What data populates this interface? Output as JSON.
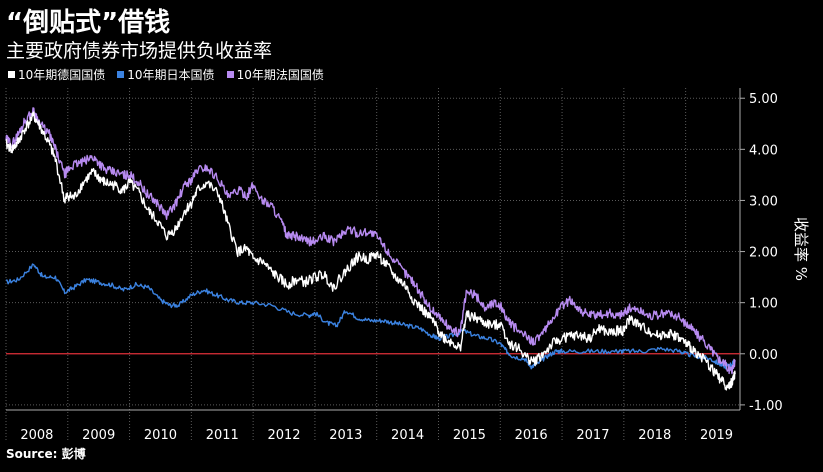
{
  "header": {
    "title": "“倒贴式”借钱",
    "subtitle": "主要政府债券市场提供负收益率"
  },
  "source": "Source: 彭博",
  "colors": {
    "background": "#000000",
    "grid": "#555555",
    "zero_line": "#e0303a",
    "germany": "#ffffff",
    "japan": "#3b82e0",
    "france": "#b78af0"
  },
  "chart_data": {
    "type": "line",
    "title": "“倒贴式”借钱",
    "subtitle": "主要政府债券市场提供负收益率",
    "ylabel": "收益率 %",
    "ylim": [
      -1.1,
      5.2
    ],
    "yticks": [
      5.0,
      4.0,
      3.0,
      2.0,
      1.0,
      0.0,
      -1.0
    ],
    "ytick_labels": [
      "5.00",
      "4.00",
      "3.00",
      "2.00",
      "1.00",
      "0.00",
      "-1.00"
    ],
    "xlim": [
      2008.0,
      2019.88
    ],
    "xtick_labels": [
      "2008",
      "2009",
      "2010",
      "2011",
      "2012",
      "2013",
      "2014",
      "2015",
      "2016",
      "2017",
      "2018",
      "2019"
    ],
    "reference_line": 0,
    "grid": true,
    "legend_position": "top-left",
    "series": [
      {
        "name": "10年期德国国债",
        "color": "#ffffff",
        "x": [
          2008.0,
          2008.1,
          2008.2,
          2008.3,
          2008.45,
          2008.55,
          2008.7,
          2008.8,
          2008.95,
          2009.0,
          2009.1,
          2009.25,
          2009.4,
          2009.5,
          2009.6,
          2009.75,
          2009.9,
          2010.0,
          2010.15,
          2010.3,
          2010.45,
          2010.6,
          2010.75,
          2010.9,
          2011.0,
          2011.1,
          2011.25,
          2011.45,
          2011.6,
          2011.75,
          2011.9,
          2012.0,
          2012.15,
          2012.3,
          2012.45,
          2012.55,
          2012.7,
          2012.85,
          2013.0,
          2013.15,
          2013.3,
          2013.45,
          2013.55,
          2013.7,
          2013.85,
          2014.0,
          2014.15,
          2014.3,
          2014.45,
          2014.6,
          2014.75,
          2014.9,
          2015.0,
          2015.1,
          2015.25,
          2015.35,
          2015.45,
          2015.6,
          2015.75,
          2015.9,
          2016.0,
          2016.15,
          2016.3,
          2016.45,
          2016.55,
          2016.7,
          2016.85,
          2017.0,
          2017.15,
          2017.3,
          2017.45,
          2017.6,
          2017.75,
          2017.9,
          2018.0,
          2018.1,
          2018.25,
          2018.4,
          2018.55,
          2018.7,
          2018.85,
          2019.0,
          2019.1,
          2019.25,
          2019.4,
          2019.5,
          2019.6,
          2019.7,
          2019.75,
          2019.8
        ],
        "y": [
          4.1,
          4.0,
          4.15,
          4.4,
          4.65,
          4.45,
          4.1,
          3.8,
          3.0,
          3.1,
          3.05,
          3.35,
          3.55,
          3.45,
          3.35,
          3.3,
          3.2,
          3.35,
          3.15,
          2.8,
          2.6,
          2.3,
          2.45,
          2.8,
          2.95,
          3.2,
          3.35,
          3.1,
          2.5,
          2.0,
          2.05,
          1.85,
          1.8,
          1.6,
          1.45,
          1.35,
          1.45,
          1.4,
          1.5,
          1.55,
          1.3,
          1.55,
          1.7,
          1.9,
          1.85,
          1.95,
          1.75,
          1.5,
          1.35,
          1.05,
          0.85,
          0.65,
          0.45,
          0.3,
          0.2,
          0.1,
          0.75,
          0.7,
          0.6,
          0.55,
          0.6,
          0.2,
          0.1,
          -0.1,
          -0.15,
          0.0,
          0.2,
          0.3,
          0.35,
          0.35,
          0.3,
          0.5,
          0.4,
          0.45,
          0.45,
          0.7,
          0.55,
          0.45,
          0.35,
          0.4,
          0.35,
          0.2,
          0.1,
          -0.05,
          -0.25,
          -0.4,
          -0.55,
          -0.65,
          -0.55,
          -0.4
        ]
      },
      {
        "name": "10年期日本国债",
        "color": "#3b82e0",
        "x": [
          2008.0,
          2008.2,
          2008.45,
          2008.6,
          2008.8,
          2008.95,
          2009.1,
          2009.3,
          2009.5,
          2009.7,
          2009.9,
          2010.1,
          2010.3,
          2010.5,
          2010.65,
          2010.8,
          2011.0,
          2011.2,
          2011.4,
          2011.6,
          2011.8,
          2012.0,
          2012.3,
          2012.6,
          2012.9,
          2013.0,
          2013.2,
          2013.35,
          2013.5,
          2013.7,
          2013.9,
          2014.1,
          2014.3,
          2014.5,
          2014.7,
          2014.9,
          2015.0,
          2015.2,
          2015.4,
          2015.6,
          2015.8,
          2016.0,
          2016.1,
          2016.2,
          2016.4,
          2016.5,
          2016.6,
          2016.75,
          2016.9,
          2017.0,
          2017.3,
          2017.6,
          2017.9,
          2018.0,
          2018.3,
          2018.6,
          2018.9,
          2019.0,
          2019.2,
          2019.4,
          2019.55,
          2019.65,
          2019.75,
          2019.8
        ],
        "y": [
          1.4,
          1.45,
          1.75,
          1.5,
          1.5,
          1.2,
          1.3,
          1.45,
          1.4,
          1.35,
          1.25,
          1.35,
          1.3,
          1.05,
          0.95,
          0.95,
          1.15,
          1.25,
          1.15,
          1.05,
          1.0,
          1.0,
          0.95,
          0.8,
          0.75,
          0.8,
          0.6,
          0.55,
          0.85,
          0.7,
          0.65,
          0.65,
          0.6,
          0.55,
          0.5,
          0.35,
          0.3,
          0.35,
          0.45,
          0.35,
          0.3,
          0.2,
          0.05,
          -0.05,
          -0.1,
          -0.25,
          -0.2,
          -0.05,
          0.05,
          0.05,
          0.05,
          0.05,
          0.05,
          0.05,
          0.05,
          0.1,
          0.05,
          0.0,
          -0.05,
          -0.1,
          -0.2,
          -0.25,
          -0.2,
          -0.15
        ]
      },
      {
        "name": "10年期法国国债",
        "color": "#b78af0",
        "x": [
          2008.0,
          2008.1,
          2008.2,
          2008.3,
          2008.45,
          2008.55,
          2008.7,
          2008.8,
          2008.95,
          2009.0,
          2009.1,
          2009.25,
          2009.4,
          2009.5,
          2009.6,
          2009.75,
          2009.9,
          2010.0,
          2010.15,
          2010.3,
          2010.45,
          2010.6,
          2010.75,
          2010.9,
          2011.0,
          2011.1,
          2011.25,
          2011.45,
          2011.6,
          2011.75,
          2011.9,
          2012.0,
          2012.15,
          2012.3,
          2012.45,
          2012.55,
          2012.7,
          2012.85,
          2013.0,
          2013.15,
          2013.3,
          2013.45,
          2013.55,
          2013.7,
          2013.85,
          2014.0,
          2014.15,
          2014.3,
          2014.45,
          2014.6,
          2014.75,
          2014.9,
          2015.0,
          2015.1,
          2015.25,
          2015.35,
          2015.45,
          2015.6,
          2015.75,
          2015.9,
          2016.0,
          2016.15,
          2016.3,
          2016.45,
          2016.55,
          2016.7,
          2016.85,
          2017.0,
          2017.15,
          2017.3,
          2017.45,
          2017.6,
          2017.75,
          2017.9,
          2018.0,
          2018.1,
          2018.25,
          2018.4,
          2018.55,
          2018.7,
          2018.85,
          2019.0,
          2019.1,
          2019.25,
          2019.4,
          2019.5,
          2019.6,
          2019.7,
          2019.75,
          2019.8
        ],
        "y": [
          4.2,
          4.1,
          4.3,
          4.55,
          4.75,
          4.5,
          4.3,
          4.0,
          3.5,
          3.6,
          3.7,
          3.75,
          3.85,
          3.75,
          3.6,
          3.55,
          3.5,
          3.5,
          3.35,
          3.1,
          2.95,
          2.7,
          2.95,
          3.3,
          3.4,
          3.6,
          3.65,
          3.4,
          3.05,
          3.2,
          3.1,
          3.3,
          3.0,
          2.9,
          2.6,
          2.3,
          2.3,
          2.2,
          2.2,
          2.3,
          2.2,
          2.35,
          2.45,
          2.35,
          2.4,
          2.3,
          2.05,
          1.8,
          1.6,
          1.4,
          1.1,
          0.85,
          0.75,
          0.6,
          0.45,
          0.4,
          1.2,
          1.15,
          0.9,
          1.0,
          0.95,
          0.6,
          0.45,
          0.3,
          0.25,
          0.4,
          0.7,
          0.95,
          1.05,
          0.85,
          0.75,
          0.75,
          0.8,
          0.75,
          0.8,
          0.9,
          0.85,
          0.75,
          0.75,
          0.8,
          0.75,
          0.6,
          0.5,
          0.3,
          0.1,
          -0.05,
          -0.15,
          -0.3,
          -0.3,
          -0.15
        ]
      }
    ]
  }
}
